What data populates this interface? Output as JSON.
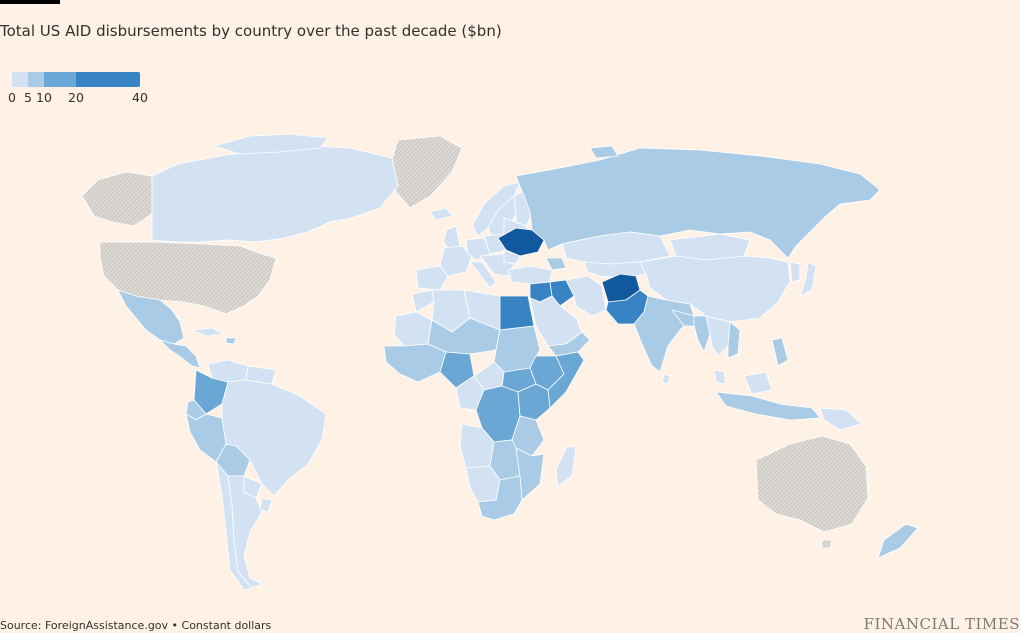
{
  "title": "Total US AID disbursements by country over the past decade ($bn)",
  "legend": {
    "stops": [
      {
        "label": "0",
        "value": 0,
        "color": "#d2e2f3"
      },
      {
        "label": "5",
        "value": 5,
        "color": "#a9cbe6"
      },
      {
        "label": "10",
        "value": 10,
        "color": "#6aa7d5"
      },
      {
        "label": "20",
        "value": 20,
        "color": "#3883c4"
      },
      {
        "label": "40",
        "value": 40,
        "color": "#11589f"
      }
    ],
    "no_data_color": "#d4d0cc"
  },
  "map_data": {
    "type": "choropleth",
    "unit": "$bn",
    "highlighted": [
      {
        "country": "Ukraine",
        "bin": "20-40"
      },
      {
        "country": "Afghanistan",
        "bin": "20-40"
      },
      {
        "country": "Egypt",
        "bin": "10-20"
      },
      {
        "country": "Iraq",
        "bin": "10-20"
      },
      {
        "country": "Jordan",
        "bin": "10-20"
      },
      {
        "country": "Pakistan",
        "bin": "10-20"
      },
      {
        "country": "Nigeria",
        "bin": "5-10"
      },
      {
        "country": "Democratic Republic of the Congo",
        "bin": "5-10"
      },
      {
        "country": "Ethiopia",
        "bin": "5-10"
      },
      {
        "country": "Somalia",
        "bin": "5-10"
      },
      {
        "country": "South Sudan",
        "bin": "5-10"
      },
      {
        "country": "Kenya",
        "bin": "5-10"
      },
      {
        "country": "Colombia",
        "bin": "5-10"
      },
      {
        "country": "Russia",
        "bin": "0-5"
      },
      {
        "country": "India",
        "bin": "0-5"
      },
      {
        "country": "Mexico",
        "bin": "0-5"
      },
      {
        "country": "South Africa",
        "bin": "0-5"
      }
    ],
    "no_data": [
      "United States",
      "Greenland",
      "Australia"
    ]
  },
  "source": "Source: ForeignAssistance.gov • Constant dollars",
  "brand": "FINANCIAL TIMES"
}
